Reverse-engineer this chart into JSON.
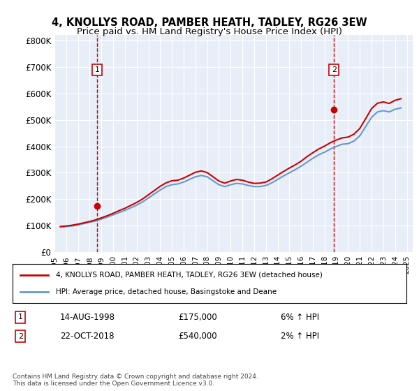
{
  "title1": "4, KNOLLYS ROAD, PAMBER HEATH, TADLEY, RG26 3EW",
  "title2": "Price paid vs. HM Land Registry's House Price Index (HPI)",
  "ylabel_ticks": [
    "£0",
    "£100K",
    "£200K",
    "£300K",
    "£400K",
    "£500K",
    "£600K",
    "£700K",
    "£800K"
  ],
  "ytick_vals": [
    0,
    100000,
    200000,
    300000,
    400000,
    500000,
    600000,
    700000,
    800000
  ],
  "ylim": [
    0,
    820000
  ],
  "xlim_start": 1995.0,
  "xlim_end": 2025.5,
  "xticks": [
    1995,
    1996,
    1997,
    1998,
    1999,
    2000,
    2001,
    2002,
    2003,
    2004,
    2005,
    2006,
    2007,
    2008,
    2009,
    2010,
    2011,
    2012,
    2013,
    2014,
    2015,
    2016,
    2017,
    2018,
    2019,
    2020,
    2021,
    2022,
    2023,
    2024,
    2025
  ],
  "background_color": "#e8eef8",
  "plot_bg": "#e8eef8",
  "grid_color": "#ffffff",
  "sale1_year": 1998.62,
  "sale1_price": 175000,
  "sale2_year": 2018.8,
  "sale2_price": 540000,
  "sale1_label": "1",
  "sale2_label": "2",
  "marker_color": "#cc0000",
  "dashed_color": "#cc0000",
  "legend_line1": "4, KNOLLYS ROAD, PAMBER HEATH, TADLEY, RG26 3EW (detached house)",
  "legend_line2": "HPI: Average price, detached house, Basingstoke and Deane",
  "ann1_date": "14-AUG-1998",
  "ann1_price": "£175,000",
  "ann1_hpi": "6% ↑ HPI",
  "ann2_date": "22-OCT-2018",
  "ann2_price": "£540,000",
  "ann2_hpi": "2% ↑ HPI",
  "footer": "Contains HM Land Registry data © Crown copyright and database right 2024.\nThis data is licensed under the Open Government Licence v3.0.",
  "hpi_line_color": "#6699cc",
  "price_line_color": "#cc0000",
  "hpi_data_years": [
    1995.5,
    1996.0,
    1996.5,
    1997.0,
    1997.5,
    1998.0,
    1998.5,
    1999.0,
    1999.5,
    2000.0,
    2000.5,
    2001.0,
    2001.5,
    2002.0,
    2002.5,
    2003.0,
    2003.5,
    2004.0,
    2004.5,
    2005.0,
    2005.5,
    2006.0,
    2006.5,
    2007.0,
    2007.5,
    2008.0,
    2008.5,
    2009.0,
    2009.5,
    2010.0,
    2010.5,
    2011.0,
    2011.5,
    2012.0,
    2012.5,
    2013.0,
    2013.5,
    2014.0,
    2014.5,
    2015.0,
    2015.5,
    2016.0,
    2016.5,
    2017.0,
    2017.5,
    2018.0,
    2018.5,
    2019.0,
    2019.5,
    2020.0,
    2020.5,
    2021.0,
    2021.5,
    2022.0,
    2022.5,
    2023.0,
    2023.5,
    2024.0,
    2024.5
  ],
  "hpi_data_values": [
    95000,
    97000,
    99000,
    103000,
    108000,
    113000,
    118000,
    125000,
    133000,
    141000,
    150000,
    158000,
    168000,
    178000,
    190000,
    205000,
    220000,
    235000,
    248000,
    255000,
    258000,
    265000,
    275000,
    285000,
    290000,
    285000,
    270000,
    255000,
    248000,
    255000,
    260000,
    258000,
    252000,
    248000,
    248000,
    252000,
    262000,
    275000,
    288000,
    300000,
    312000,
    325000,
    340000,
    355000,
    368000,
    378000,
    390000,
    400000,
    408000,
    410000,
    420000,
    440000,
    475000,
    510000,
    530000,
    535000,
    530000,
    540000,
    545000
  ],
  "price_data_years": [
    1995.5,
    1996.0,
    1996.5,
    1997.0,
    1997.5,
    1998.0,
    1998.5,
    1999.0,
    1999.5,
    2000.0,
    2000.5,
    2001.0,
    2001.5,
    2002.0,
    2002.5,
    2003.0,
    2003.5,
    2004.0,
    2004.5,
    2005.0,
    2005.5,
    2006.0,
    2006.5,
    2007.0,
    2007.5,
    2008.0,
    2008.5,
    2009.0,
    2009.5,
    2010.0,
    2010.5,
    2011.0,
    2011.5,
    2012.0,
    2012.5,
    2013.0,
    2013.5,
    2014.0,
    2014.5,
    2015.0,
    2015.5,
    2016.0,
    2016.5,
    2017.0,
    2017.5,
    2018.0,
    2018.5,
    2019.0,
    2019.5,
    2020.0,
    2020.5,
    2021.0,
    2021.5,
    2022.0,
    2022.5,
    2023.0,
    2023.5,
    2024.0,
    2024.5
  ],
  "price_data_values": [
    97000,
    99000,
    102000,
    106000,
    111000,
    116000,
    122000,
    130000,
    138000,
    147000,
    157000,
    166000,
    177000,
    188000,
    201000,
    217000,
    233000,
    249000,
    262000,
    270000,
    272000,
    280000,
    291000,
    302000,
    307000,
    301000,
    285000,
    269000,
    261000,
    269000,
    275000,
    272000,
    265000,
    260000,
    261000,
    265000,
    277000,
    291000,
    305000,
    318000,
    330000,
    344000,
    361000,
    376000,
    390000,
    401000,
    414000,
    424000,
    432000,
    435000,
    446000,
    468000,
    505000,
    543000,
    563000,
    568000,
    562000,
    574000,
    580000
  ]
}
